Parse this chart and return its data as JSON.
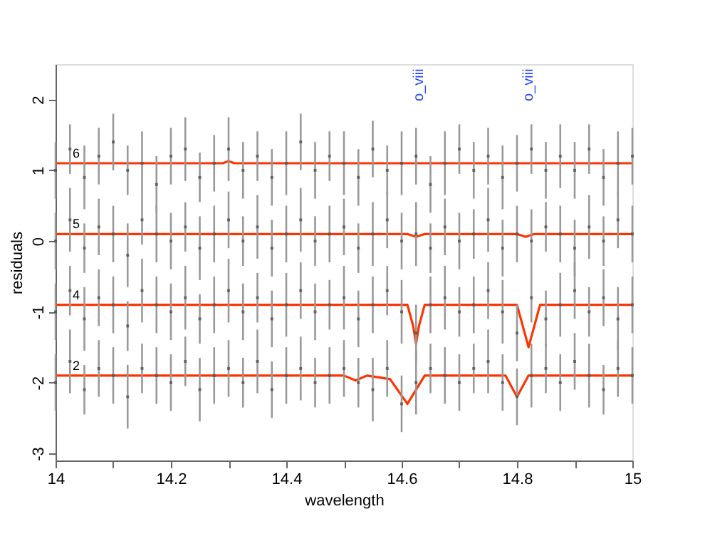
{
  "chart_data": {
    "type": "scatter",
    "xlabel": "wavelength",
    "ylabel": "residuals",
    "xlim": [
      14,
      15
    ],
    "ylim": [
      -3.1,
      2.5
    ],
    "xticks": [
      14,
      {
        "value": 14.1,
        "label": null
      },
      14.2,
      {
        "value": 14.3,
        "label": null
      },
      14.4,
      {
        "value": 14.5,
        "label": null
      },
      14.6,
      {
        "value": 14.7,
        "label": null
      },
      14.8,
      {
        "value": 14.9,
        "label": null
      },
      15
    ],
    "yticks": [
      -3,
      -2,
      -1,
      0,
      1,
      2
    ],
    "grid": false,
    "x": [
      14.0,
      14.025,
      14.05,
      14.075,
      14.1,
      14.125,
      14.15,
      14.175,
      14.2,
      14.225,
      14.25,
      14.275,
      14.3,
      14.325,
      14.35,
      14.375,
      14.4,
      14.425,
      14.45,
      14.475,
      14.5,
      14.525,
      14.55,
      14.575,
      14.6,
      14.625,
      14.65,
      14.675,
      14.7,
      14.725,
      14.75,
      14.775,
      14.8,
      14.825,
      14.85,
      14.875,
      14.9,
      14.925,
      14.95,
      14.975,
      15.0
    ],
    "series": [
      {
        "marker": "square",
        "color": "#444444",
        "values": [
          1.0,
          1.3,
          0.9,
          1.2,
          1.4,
          1.0,
          1.1,
          0.8,
          1.2,
          1.3,
          0.9,
          1.1,
          1.3,
          1.0,
          1.2,
          0.9,
          1.1,
          1.4,
          1.0,
          1.2,
          1.1,
          0.9,
          1.3,
          1.0,
          1.1,
          1.2,
          0.8,
          1.1,
          1.3,
          1.0,
          1.2,
          0.9,
          1.1,
          1.3,
          1.0,
          1.2,
          1.0,
          1.3,
          0.9,
          1.1,
          1.2
        ],
        "errors": [
          0.4,
          0.35,
          0.45,
          0.4,
          0.4,
          0.35,
          0.45,
          0.4,
          0.4,
          0.45,
          0.35,
          0.4,
          0.45,
          0.4,
          0.35,
          0.4,
          0.45,
          0.4,
          0.4,
          0.35,
          0.45,
          0.4,
          0.4,
          0.35,
          0.45,
          0.4,
          0.4,
          0.45,
          0.35,
          0.4,
          0.4,
          0.45,
          0.4,
          0.35,
          0.4,
          0.45,
          0.4,
          0.35,
          0.4,
          0.45,
          0.4
        ]
      },
      {
        "marker": "square",
        "color": "#444444",
        "values": [
          0.0,
          0.3,
          -0.1,
          0.2,
          0.1,
          -0.2,
          0.3,
          0.1,
          0.0,
          0.2,
          -0.1,
          0.1,
          0.3,
          0.0,
          0.2,
          -0.1,
          0.1,
          0.3,
          0.0,
          0.1,
          0.2,
          -0.1,
          0.1,
          0.3,
          0.0,
          0.1,
          -0.1,
          0.2,
          0.0,
          0.1,
          0.3,
          -0.1,
          0.1,
          0.0,
          0.2,
          0.1,
          -0.1,
          0.2,
          0.0,
          0.3,
          0.1
        ],
        "errors": [
          0.4,
          0.45,
          0.35,
          0.4,
          0.4,
          0.45,
          0.35,
          0.4,
          0.4,
          0.35,
          0.45,
          0.4,
          0.4,
          0.35,
          0.45,
          0.4,
          0.4,
          0.45,
          0.35,
          0.4,
          0.4,
          0.35,
          0.45,
          0.4,
          0.4,
          0.45,
          0.35,
          0.4,
          0.4,
          0.35,
          0.45,
          0.4,
          0.4,
          0.45,
          0.35,
          0.4,
          0.4,
          0.45,
          0.35,
          0.4,
          0.4
        ]
      },
      {
        "marker": "square",
        "color": "#444444",
        "values": [
          -1.0,
          -0.7,
          -1.1,
          -0.8,
          -0.9,
          -1.2,
          -0.7,
          -0.9,
          -1.0,
          -0.8,
          -1.1,
          -0.9,
          -0.7,
          -1.0,
          -0.8,
          -1.1,
          -0.9,
          -0.7,
          -1.0,
          -0.9,
          -0.8,
          -1.1,
          -0.9,
          -0.7,
          -1.0,
          -1.3,
          -0.9,
          -0.8,
          -1.0,
          -0.9,
          -0.7,
          -1.0,
          -1.3,
          -0.8,
          -1.1,
          -0.9,
          -0.7,
          -1.0,
          -0.8,
          -1.1,
          -0.9
        ],
        "errors": [
          0.4,
          0.35,
          0.45,
          0.4,
          0.4,
          0.35,
          0.45,
          0.4,
          0.4,
          0.45,
          0.35,
          0.4,
          0.45,
          0.4,
          0.35,
          0.4,
          0.45,
          0.4,
          0.4,
          0.35,
          0.45,
          0.4,
          0.4,
          0.35,
          0.45,
          0.4,
          0.4,
          0.45,
          0.35,
          0.4,
          0.4,
          0.45,
          0.4,
          0.35,
          0.4,
          0.45,
          0.4,
          0.35,
          0.4,
          0.45,
          0.4
        ]
      },
      {
        "marker": "square",
        "color": "#444444",
        "values": [
          -2.0,
          -1.7,
          -2.1,
          -1.8,
          -1.9,
          -2.2,
          -1.8,
          -1.9,
          -2.0,
          -1.7,
          -2.1,
          -1.9,
          -1.8,
          -2.0,
          -1.7,
          -2.1,
          -1.9,
          -1.8,
          -2.0,
          -1.9,
          -1.8,
          -2.0,
          -2.1,
          -1.8,
          -2.3,
          -2.0,
          -1.8,
          -1.9,
          -2.0,
          -1.8,
          -1.7,
          -2.0,
          -2.2,
          -1.9,
          -1.8,
          -2.0,
          -1.7,
          -1.9,
          -2.1,
          -1.8,
          -1.9
        ],
        "errors": [
          0.4,
          0.45,
          0.35,
          0.4,
          0.4,
          0.45,
          0.35,
          0.4,
          0.4,
          0.35,
          0.45,
          0.4,
          0.4,
          0.35,
          0.45,
          0.4,
          0.4,
          0.45,
          0.35,
          0.4,
          0.4,
          0.35,
          0.45,
          0.4,
          0.4,
          0.45,
          0.35,
          0.4,
          0.4,
          0.35,
          0.45,
          0.4,
          0.4,
          0.45,
          0.35,
          0.4,
          0.4,
          0.45,
          0.35,
          0.4,
          0.4
        ]
      },
      {
        "type": "line",
        "name": "6",
        "color": "#ff3300",
        "x": [
          14.0,
          14.29,
          14.3,
          14.31,
          15.0
        ],
        "values": [
          1.1,
          1.1,
          1.13,
          1.1,
          1.1
        ]
      },
      {
        "type": "line",
        "name": "5",
        "color": "#ff3300",
        "x": [
          14.0,
          14.61,
          14.625,
          14.64,
          14.8,
          14.815,
          14.83,
          15.0
        ],
        "values": [
          0.1,
          0.1,
          0.06,
          0.1,
          0.1,
          0.06,
          0.1,
          0.1
        ]
      },
      {
        "type": "line",
        "name": "4",
        "color": "#ff3300",
        "x": [
          14.0,
          14.61,
          14.62,
          14.625,
          14.63,
          14.64,
          14.8,
          14.81,
          14.82,
          14.83,
          14.84,
          15.0
        ],
        "values": [
          -0.9,
          -0.9,
          -1.2,
          -1.45,
          -1.2,
          -0.9,
          -0.9,
          -1.2,
          -1.5,
          -1.2,
          -0.9,
          -0.9
        ]
      },
      {
        "type": "line",
        "name": "2",
        "color": "#ff3300",
        "x": [
          14.0,
          14.5,
          14.52,
          14.54,
          14.58,
          14.61,
          14.64,
          14.78,
          14.8,
          14.82,
          15.0
        ],
        "values": [
          -1.9,
          -1.9,
          -1.97,
          -1.9,
          -1.95,
          -2.3,
          -1.9,
          -1.9,
          -2.2,
          -1.9,
          -1.9
        ]
      }
    ],
    "annotations": [
      "o_viii",
      "o_viii"
    ]
  }
}
